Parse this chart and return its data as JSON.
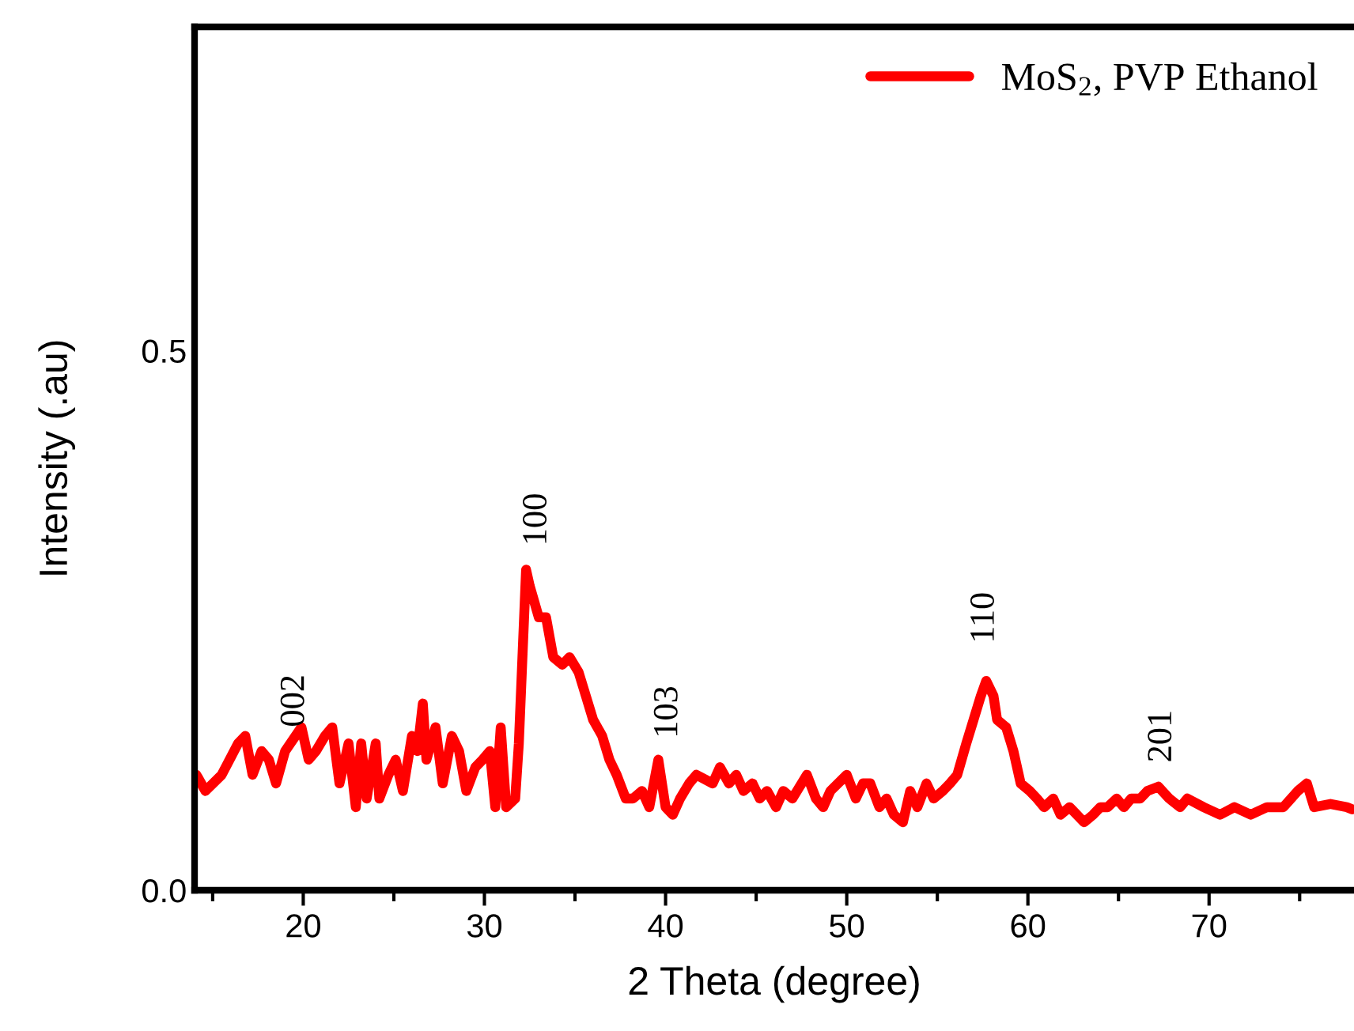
{
  "chart_data": {
    "type": "line",
    "xlabel": "2 Theta (degree)",
    "ylabel": "Intensity (.au)",
    "xlim": [
      14,
      78
    ],
    "xticks": [
      20,
      30,
      40,
      50,
      60,
      70
    ],
    "ylim": [
      0,
      0.8
    ],
    "yticks": [
      {
        "value": 0.0,
        "label": "0.0"
      },
      {
        "value": 0.5,
        "label": "0.5"
      }
    ],
    "grid": false,
    "legend": "top right",
    "marker": "none",
    "line_style": "solid",
    "series": [
      {
        "name": "MoS$_{2}$, PVP Ethanol",
        "color": "#ff0000",
        "x": [
          14.1,
          14.6,
          15.5,
          16.4,
          16.8,
          17.2,
          17.7,
          18.1,
          18.5,
          19.0,
          19.9,
          20.3,
          20.7,
          21.2,
          21.6,
          22.0,
          22.5,
          22.9,
          23.2,
          23.5,
          24.0,
          24.2,
          24.7,
          25.1,
          25.5,
          26.0,
          26.3,
          26.6,
          26.8,
          27.3,
          27.7,
          28.2,
          28.6,
          29.0,
          29.5,
          29.9,
          30.3,
          30.6,
          30.9,
          31.2,
          31.7,
          31.9,
          32.3,
          32.5,
          33.0,
          33.4,
          33.8,
          34.3,
          34.7,
          35.2,
          35.6,
          36.0,
          36.5,
          36.9,
          37.3,
          37.8,
          38.2,
          38.7,
          39.1,
          39.6,
          40.0,
          40.4,
          40.8,
          41.3,
          41.7,
          42.6,
          43.0,
          43.5,
          43.9,
          44.3,
          44.8,
          45.2,
          45.6,
          46.1,
          46.5,
          47.0,
          47.8,
          48.3,
          48.7,
          49.1,
          50.0,
          50.5,
          50.9,
          51.3,
          51.8,
          52.2,
          52.6,
          53.1,
          53.5,
          53.9,
          54.4,
          54.8,
          55.3,
          55.7,
          56.1,
          56.6,
          57.0,
          57.4,
          57.7,
          58.1,
          58.3,
          58.8,
          59.2,
          59.6,
          60.1,
          60.5,
          60.9,
          61.4,
          61.8,
          62.3,
          62.7,
          63.1,
          63.6,
          64.0,
          64.4,
          64.9,
          65.3,
          65.7,
          66.2,
          66.6,
          67.2,
          67.8,
          68.4,
          68.8,
          69.7,
          70.6,
          71.4,
          72.3,
          73.2,
          74.1,
          74.9,
          75.4,
          75.8,
          76.7,
          77.6,
          77.9
        ],
        "values": [
          0.107,
          0.092,
          0.107,
          0.136,
          0.143,
          0.107,
          0.129,
          0.121,
          0.099,
          0.129,
          0.151,
          0.121,
          0.129,
          0.143,
          0.151,
          0.099,
          0.136,
          0.077,
          0.136,
          0.085,
          0.136,
          0.085,
          0.107,
          0.121,
          0.092,
          0.143,
          0.129,
          0.173,
          0.121,
          0.151,
          0.099,
          0.143,
          0.129,
          0.092,
          0.114,
          0.121,
          0.129,
          0.077,
          0.151,
          0.077,
          0.085,
          0.136,
          0.297,
          0.282,
          0.253,
          0.253,
          0.216,
          0.209,
          0.216,
          0.202,
          0.18,
          0.158,
          0.143,
          0.121,
          0.107,
          0.085,
          0.085,
          0.092,
          0.077,
          0.121,
          0.077,
          0.07,
          0.085,
          0.099,
          0.107,
          0.099,
          0.114,
          0.099,
          0.107,
          0.092,
          0.099,
          0.085,
          0.092,
          0.077,
          0.092,
          0.085,
          0.107,
          0.085,
          0.077,
          0.092,
          0.107,
          0.085,
          0.099,
          0.099,
          0.077,
          0.085,
          0.07,
          0.063,
          0.092,
          0.077,
          0.099,
          0.085,
          0.092,
          0.099,
          0.107,
          0.136,
          0.158,
          0.18,
          0.194,
          0.18,
          0.158,
          0.151,
          0.129,
          0.099,
          0.092,
          0.085,
          0.077,
          0.085,
          0.07,
          0.077,
          0.07,
          0.063,
          0.07,
          0.077,
          0.077,
          0.085,
          0.077,
          0.085,
          0.085,
          0.092,
          0.096,
          0.085,
          0.077,
          0.085,
          0.077,
          0.07,
          0.077,
          0.07,
          0.077,
          0.077,
          0.092,
          0.099,
          0.077,
          0.08,
          0.077,
          0.075
        ]
      }
    ],
    "annotations": [
      "002",
      "100",
      "103",
      "110",
      "201"
    ]
  }
}
